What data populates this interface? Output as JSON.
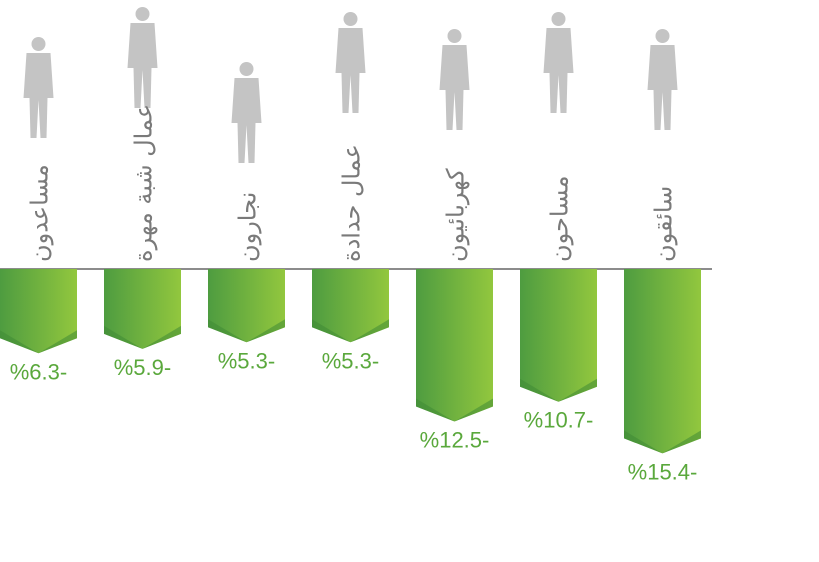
{
  "chart_data": {
    "type": "bar",
    "categories": [
      "مساعدون",
      "عمال شبة مهرة",
      "نجارون",
      "عمال حدادة",
      "كهربائيون",
      "مساحون",
      "سائقون"
    ],
    "values": [
      -6.3,
      -5.9,
      -5.3,
      -5.3,
      -12.5,
      -10.7,
      -15.4
    ],
    "value_labels": [
      "%6.3-",
      "%5.9-",
      "%5.3-",
      "%5.3-",
      "%12.5-",
      "%10.7-",
      "%15.4-"
    ],
    "color": "#6ab344"
  }
}
